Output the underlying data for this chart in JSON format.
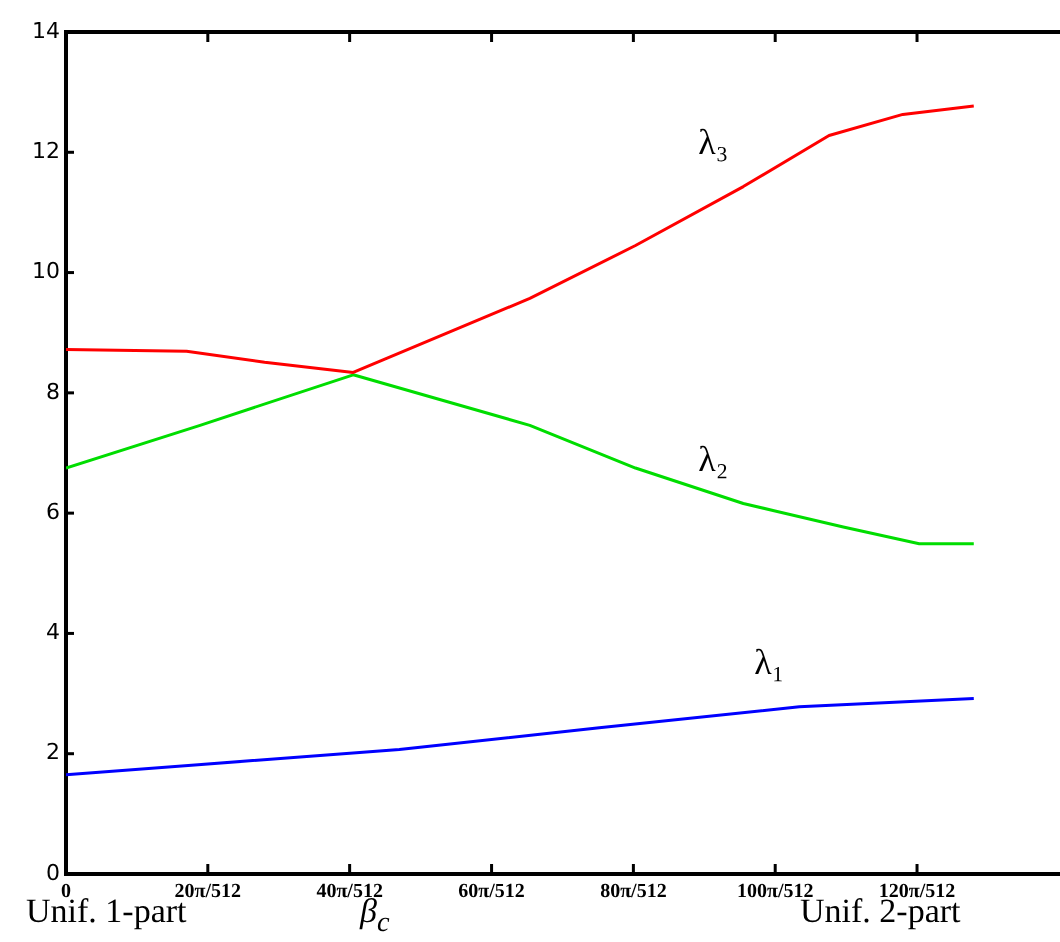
{
  "chart_data": {
    "type": "line",
    "xlim": [
      0,
      0.86
    ],
    "xticks": [
      0,
      {
        "value": 0.1227,
        "label": "20π/512"
      },
      {
        "value": 0.2454,
        "label": "40π/512"
      },
      {
        "value": 0.3682,
        "label": "60π/512"
      },
      {
        "value": 0.4909,
        "label": "80π/512"
      },
      {
        "value": 0.6136,
        "label": "100π/512"
      },
      {
        "value": 0.7363,
        "label": "120π/512"
      }
    ],
    "ylim": [
      0,
      14
    ],
    "yticks": [
      0,
      2,
      4,
      6,
      8,
      10,
      12,
      14
    ],
    "grid": false,
    "legend": false,
    "marker": "none",
    "line_style": "solid",
    "series": [
      {
        "name": "λ₃",
        "color": "#ff0000",
        "x": [
          0,
          0.1043,
          0.1718,
          0.2485,
          0.4013,
          0.4927,
          0.586,
          0.6602,
          0.724,
          0.7854
        ],
        "values": [
          8.72,
          8.69,
          8.51,
          8.34,
          9.57,
          10.45,
          11.43,
          12.28,
          12.63,
          12.77
        ]
      },
      {
        "name": "λ₂",
        "color": "#00dd00",
        "x": [
          0,
          0.116,
          0.2485,
          0.4013,
          0.4927,
          0.586,
          0.6725,
          0.7382,
          0.7854
        ],
        "values": [
          6.75,
          7.46,
          8.3,
          7.46,
          6.75,
          6.16,
          5.77,
          5.49,
          5.49
        ]
      },
      {
        "name": "λ₁",
        "color": "#0000ff",
        "x": [
          0,
          0.2884,
          0.4614,
          0.6345,
          0.7854
        ],
        "values": [
          1.65,
          2.07,
          2.43,
          2.78,
          2.92
        ]
      }
    ],
    "annotations": [
      "Unif. 1-part",
      "β$_{c}$",
      "Unif. 2-part"
    ]
  }
}
